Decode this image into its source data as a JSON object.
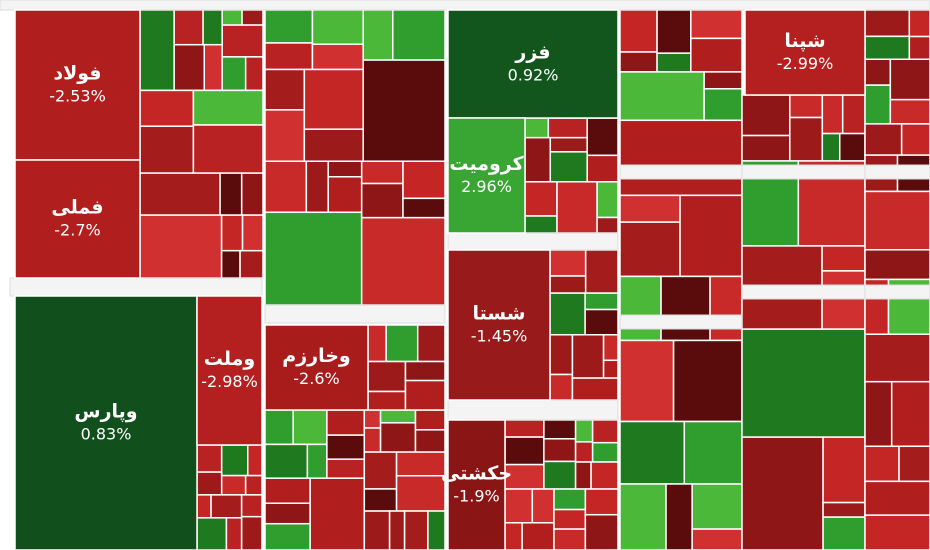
{
  "tiles": [
    {
      "label": "فولاد",
      "change": "-2.53%",
      "color": "#b01e1e"
    },
    {
      "label": "فملی",
      "change": "-2.7%",
      "color": "#b01e1e"
    },
    {
      "label": "وپارس",
      "change": "0.83%",
      "color": "#11501c"
    },
    {
      "label": "وملت",
      "change": "-2.98%",
      "color": "#b42020"
    },
    {
      "label": "فزر",
      "change": "0.92%",
      "color": "#12561d"
    },
    {
      "label": "کرومیت",
      "change": "2.96%",
      "color": "#39a532"
    },
    {
      "label": "شستا",
      "change": "-1.45%",
      "color": "#991a1a"
    },
    {
      "label": "حکشتی",
      "change": "-1.9%",
      "color": "#8a1515"
    },
    {
      "label": "شپنا",
      "change": "-2.99%",
      "color": "#b42020"
    },
    {
      "label": "وخارزم",
      "change": "-2.6%",
      "color": "#a81c1c"
    }
  ]
}
